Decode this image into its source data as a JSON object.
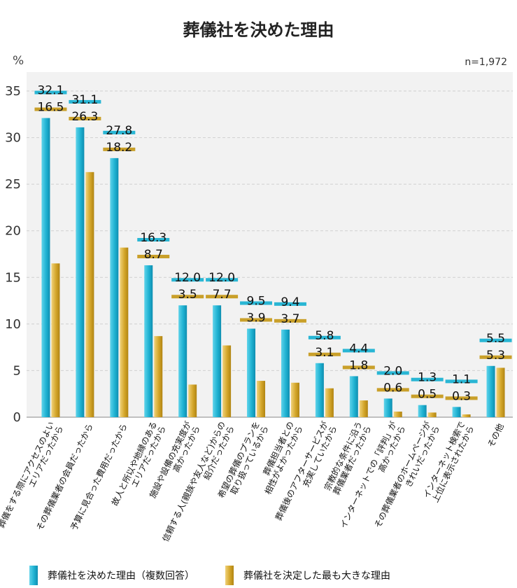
{
  "chart_data": {
    "type": "bar",
    "title": "葬儀社を決めた理由",
    "ylabel": "%",
    "note": "n=1,972",
    "ylim": [
      0,
      35
    ],
    "yticks": [
      0,
      5,
      10,
      15,
      20,
      25,
      30,
      35
    ],
    "grid": true,
    "legend_position": "bottom",
    "categories": [
      [
        "葬儀をする際にアクセスのよい",
        "エリアだったから"
      ],
      [
        "その葬儀業者の会員だったから"
      ],
      [
        "予算に見合った費用だったから"
      ],
      [
        "故人と所以や地縁のある",
        "エリアだったから"
      ],
      [
        "施設や設備の充実度が",
        "高かったから"
      ],
      [
        "信頼する人(親族や友人など)からの",
        "紹介だったから"
      ],
      [
        "希望の葬儀のプランを",
        "取り扱っているから"
      ],
      [
        "葬儀担当者との",
        "相性がよかったから"
      ],
      [
        "葬儀後のアフターサービスが",
        "充実していたから"
      ],
      [
        "宗教的な条件に沿う",
        "葬儀業者だったから"
      ],
      [
        "インターネットでの「評判」が",
        "高かったから"
      ],
      [
        "その葬儀業者のホームページが",
        "きれいだったから"
      ],
      [
        "インターネット検索で",
        "上位に表示されたから"
      ],
      [
        "その他"
      ]
    ],
    "series": [
      {
        "name": "葬儀社を決めた理由（複数回答）",
        "color": "#29b6d4",
        "values": [
          32.1,
          31.1,
          27.8,
          16.3,
          12.0,
          12.0,
          9.5,
          9.4,
          5.8,
          4.4,
          2.0,
          1.3,
          1.1,
          5.5
        ],
        "labels": [
          "32.1",
          "31.1",
          "27.8",
          "16.3",
          "12.0",
          "12.0",
          "9.5",
          "9.4",
          "5.8",
          "4.4",
          "2.0",
          "1.3",
          "1.1",
          "5.5"
        ]
      },
      {
        "name": "葬儀社を決定した最も大きな理由",
        "color": "#d4a62a",
        "values": [
          16.5,
          26.3,
          18.2,
          8.7,
          3.5,
          7.7,
          3.9,
          3.7,
          3.1,
          1.8,
          0.6,
          0.5,
          0.3,
          5.3
        ],
        "labels": [
          "16.5",
          "26.3",
          "18.2",
          "8.7",
          "3.5",
          "7.7",
          "3.9",
          "3.7",
          "3.1",
          "1.8",
          "0.6",
          "0.5",
          "0.3",
          "5.3"
        ]
      }
    ]
  }
}
